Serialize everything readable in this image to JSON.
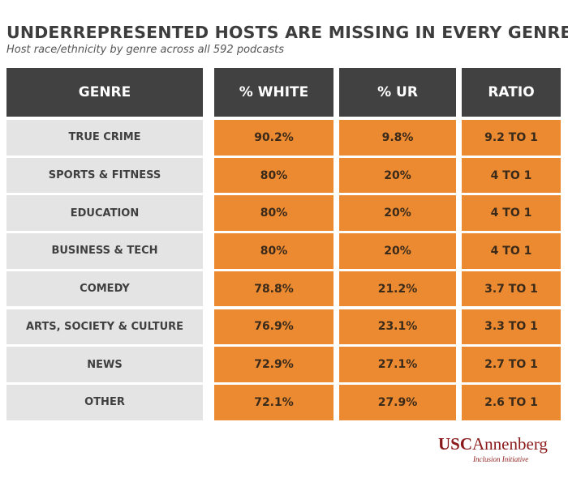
{
  "header": {
    "title": "UNDERREPRESENTED HOSTS ARE MISSING IN EVERY GENRE",
    "subtitle": "Host race/ethnicity by genre across all 592 podcasts"
  },
  "colors": {
    "header_bg": "#414141",
    "genre_bg": "#e4e4e4",
    "value_bg": "#ec8a31",
    "brand": "#8a1a1a"
  },
  "chart_data": {
    "type": "table",
    "title": "UNDERREPRESENTED HOSTS ARE MISSING IN EVERY GENRE",
    "subtitle": "Host race/ethnicity by genre across all 592 podcasts",
    "columns": [
      "GENRE",
      "% WHITE",
      "% UR",
      "RATIO"
    ],
    "rows": [
      {
        "genre": "TRUE CRIME",
        "white": "90.2%",
        "ur": "9.8%",
        "ratio": "9.2 TO 1"
      },
      {
        "genre": "SPORTS & FITNESS",
        "white": "80%",
        "ur": "20%",
        "ratio": "4 TO 1"
      },
      {
        "genre": "EDUCATION",
        "white": "80%",
        "ur": "20%",
        "ratio": "4 TO 1"
      },
      {
        "genre": "BUSINESS & TECH",
        "white": "80%",
        "ur": "20%",
        "ratio": "4 TO 1"
      },
      {
        "genre": "COMEDY",
        "white": "78.8%",
        "ur": "21.2%",
        "ratio": "3.7 TO 1"
      },
      {
        "genre": "ARTS, SOCIETY & CULTURE",
        "white": "76.9%",
        "ur": "23.1%",
        "ratio": "3.3 TO 1"
      },
      {
        "genre": "NEWS",
        "white": "72.9%",
        "ur": "27.1%",
        "ratio": "2.7 TO 1"
      },
      {
        "genre": "OTHER",
        "white": "72.1%",
        "ur": "27.9%",
        "ratio": "2.6 TO 1"
      }
    ]
  },
  "logo": {
    "usc": "USC",
    "annenberg": "Annenberg",
    "initiative": "Inclusion Initiative"
  }
}
